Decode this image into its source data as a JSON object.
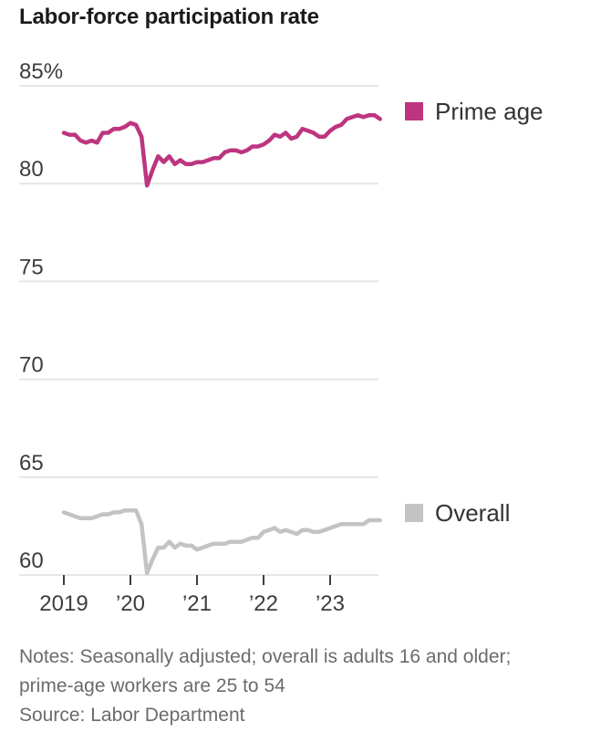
{
  "title": "Labor-force participation rate",
  "legend": {
    "prime_label": "Prime age",
    "overall_label": "Overall"
  },
  "notes_text": "Notes: Seasonally adjusted; overall is adults 16 and older; prime-age workers are 25 to 54",
  "source_text": "Source: Labor Department",
  "colors": {
    "prime": "#bd3580",
    "overall": "#c3c3c3",
    "grid": "#e3e3e3",
    "axis_text": "#3d3d3d",
    "tick_mark": "#3d3d3d"
  },
  "chart_data": {
    "type": "line",
    "title": "Labor-force participation rate",
    "unit": "%",
    "x_range": [
      "2019-01",
      "2023-10"
    ],
    "x_tick_labels": [
      "2019",
      "’20",
      "’21",
      "’22",
      "’23"
    ],
    "y_ticks": [
      85,
      80,
      75,
      70,
      65,
      60
    ],
    "y_tick_labels": [
      "85%",
      "80",
      "75",
      "70",
      "65",
      "60"
    ],
    "ylim": [
      60,
      85
    ],
    "grid": true,
    "legend_position": "right",
    "series": [
      {
        "name": "Prime age",
        "color": "#bd3580",
        "values": [
          82.6,
          82.5,
          82.5,
          82.2,
          82.1,
          82.2,
          82.1,
          82.6,
          82.6,
          82.8,
          82.8,
          82.9,
          83.1,
          83.0,
          82.4,
          79.9,
          80.7,
          81.4,
          81.1,
          81.4,
          81.0,
          81.2,
          81.0,
          81.0,
          81.1,
          81.1,
          81.2,
          81.3,
          81.3,
          81.6,
          81.7,
          81.7,
          81.6,
          81.7,
          81.9,
          81.9,
          82.0,
          82.2,
          82.5,
          82.4,
          82.6,
          82.3,
          82.4,
          82.8,
          82.7,
          82.6,
          82.4,
          82.4,
          82.7,
          82.9,
          83.0,
          83.3,
          83.4,
          83.5,
          83.4,
          83.5,
          83.5,
          83.3
        ]
      },
      {
        "name": "Overall",
        "color": "#c3c3c3",
        "values": [
          63.2,
          63.1,
          63.0,
          62.9,
          62.9,
          62.9,
          63.0,
          63.1,
          63.1,
          63.2,
          63.2,
          63.3,
          63.3,
          63.3,
          62.6,
          60.1,
          60.8,
          61.4,
          61.4,
          61.7,
          61.4,
          61.6,
          61.5,
          61.5,
          61.3,
          61.4,
          61.5,
          61.6,
          61.6,
          61.6,
          61.7,
          61.7,
          61.7,
          61.8,
          61.9,
          61.9,
          62.2,
          62.3,
          62.4,
          62.2,
          62.3,
          62.2,
          62.1,
          62.3,
          62.3,
          62.2,
          62.2,
          62.3,
          62.4,
          62.5,
          62.6,
          62.6,
          62.6,
          62.6,
          62.6,
          62.8,
          62.8,
          62.8
        ]
      }
    ]
  }
}
